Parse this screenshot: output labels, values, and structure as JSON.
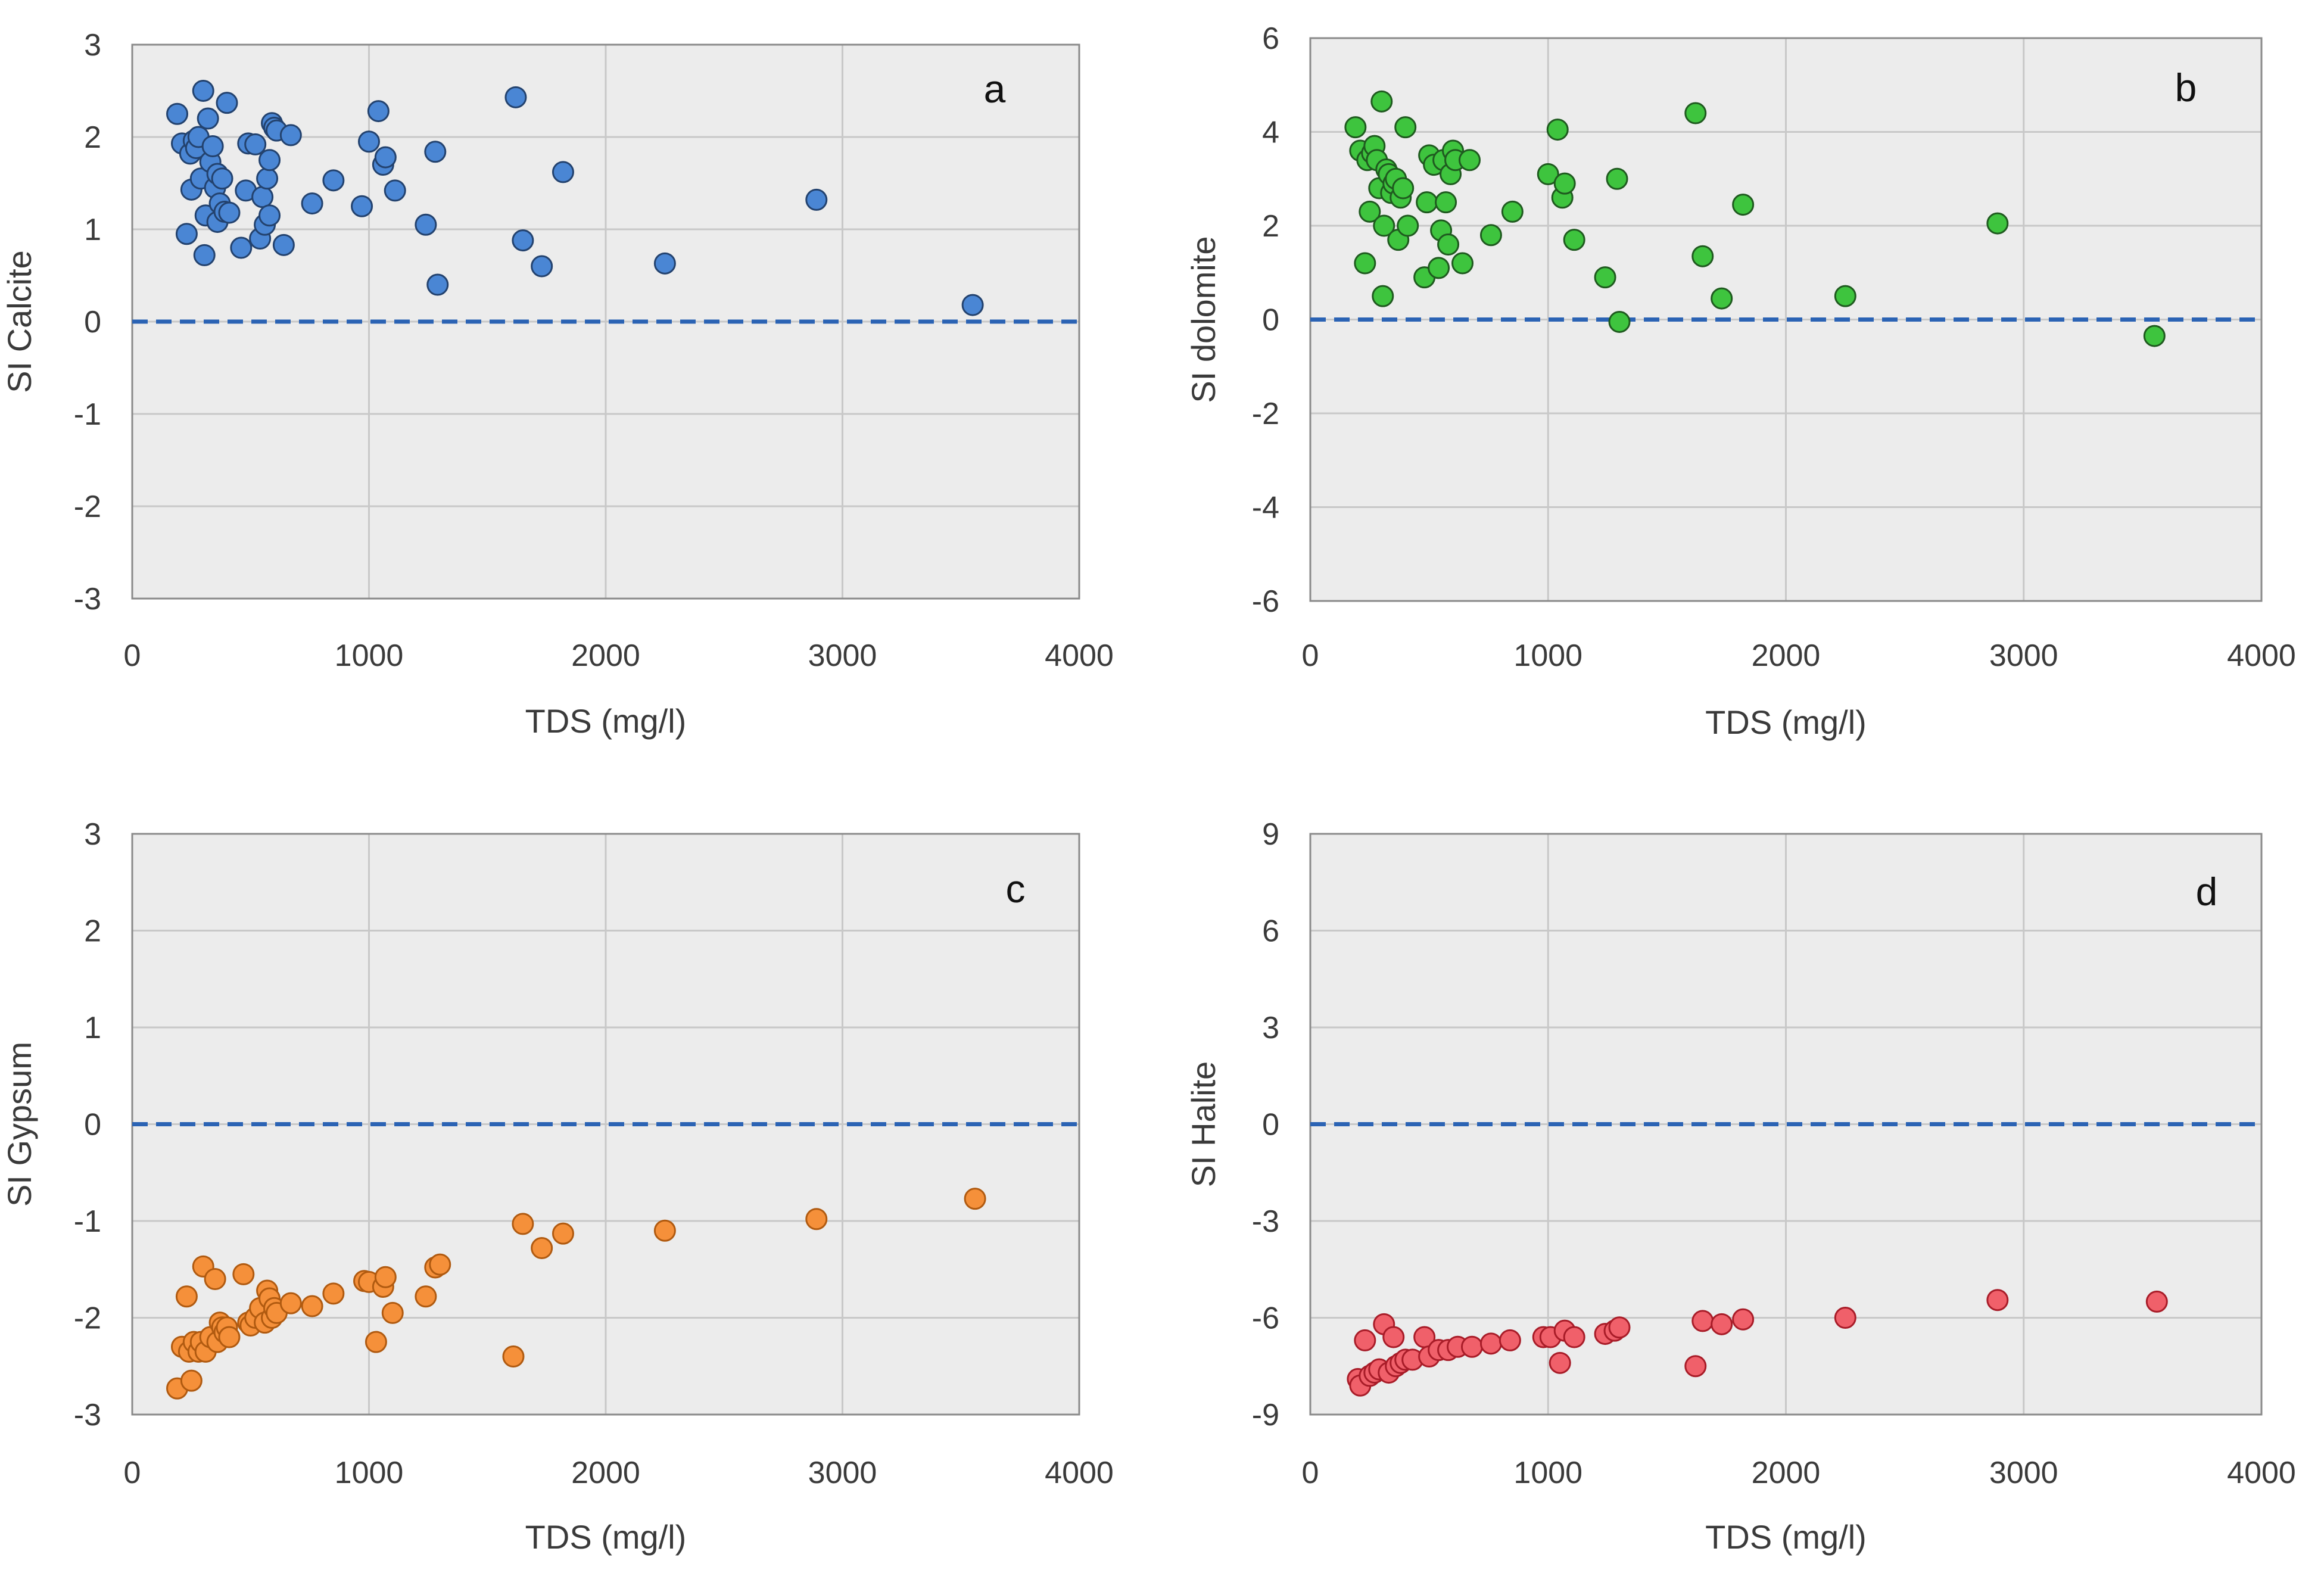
{
  "chart_data": [
    {
      "type": "scatter",
      "panel_label": "a",
      "xlabel": "TDS (mg/l)",
      "ylabel": "SI Calcite",
      "xlim": [
        0,
        4000
      ],
      "ylim": [
        -3,
        3
      ],
      "xticks": [
        "0",
        "1000",
        "2000",
        "3000",
        "4000"
      ],
      "yticks": [
        "3",
        "2",
        "1",
        "0",
        "-1",
        "-2",
        "-3"
      ],
      "reference_line": 0,
      "fill": "#4a86d4",
      "stroke": "#23426e",
      "x": [
        190,
        210,
        230,
        245,
        250,
        260,
        270,
        280,
        290,
        300,
        305,
        310,
        320,
        330,
        340,
        350,
        360,
        360,
        370,
        380,
        390,
        400,
        410,
        460,
        480,
        490,
        520,
        540,
        550,
        560,
        570,
        580,
        580,
        590,
        600,
        610,
        640,
        670,
        760,
        850,
        970,
        1000,
        1040,
        1060,
        1070,
        1110,
        1240,
        1280,
        1290,
        1620,
        1650,
        1730,
        1820,
        2250,
        2890,
        3550
      ],
      "y": [
        2.25,
        1.93,
        0.95,
        1.82,
        1.43,
        1.96,
        1.88,
        2.0,
        1.55,
        2.5,
        0.72,
        1.15,
        2.2,
        1.73,
        1.9,
        1.45,
        1.08,
        1.6,
        1.28,
        1.55,
        1.19,
        2.37,
        1.18,
        0.8,
        1.42,
        1.93,
        1.92,
        0.9,
        1.35,
        1.05,
        1.55,
        1.75,
        1.15,
        2.15,
        2.1,
        2.07,
        0.83,
        2.02,
        1.28,
        1.53,
        1.25,
        1.95,
        2.28,
        1.7,
        1.78,
        1.42,
        1.05,
        1.84,
        0.4,
        2.43,
        0.88,
        0.6,
        1.62,
        0.63,
        1.32,
        0.18
      ]
    },
    {
      "type": "scatter",
      "panel_label": "b",
      "xlabel": "TDS (mg/l)",
      "ylabel": "SI dolomite",
      "xlim": [
        0,
        4000
      ],
      "ylim": [
        -6,
        6
      ],
      "xticks": [
        "0",
        "1000",
        "2000",
        "3000",
        "4000"
      ],
      "yticks": [
        "6",
        "4",
        "2",
        "0",
        "-2",
        "-4",
        "-6"
      ],
      "reference_line": 0,
      "fill": "#3ec43e",
      "stroke": "#1f5a1f",
      "x": [
        190,
        210,
        230,
        240,
        250,
        260,
        270,
        280,
        290,
        300,
        305,
        310,
        320,
        330,
        340,
        350,
        360,
        370,
        380,
        390,
        400,
        410,
        480,
        490,
        500,
        520,
        540,
        550,
        560,
        570,
        580,
        590,
        600,
        610,
        640,
        670,
        760,
        850,
        1000,
        1040,
        1060,
        1070,
        1110,
        1240,
        1290,
        1300,
        1620,
        1650,
        1730,
        1820,
        2250,
        2890,
        3550
      ],
      "y": [
        4.1,
        3.6,
        1.2,
        3.4,
        2.3,
        3.55,
        3.7,
        3.4,
        2.8,
        4.65,
        0.5,
        2.0,
        3.2,
        3.1,
        2.7,
        2.9,
        3.0,
        1.7,
        2.6,
        2.8,
        4.1,
        2.0,
        0.9,
        2.5,
        3.5,
        3.3,
        1.1,
        1.9,
        3.4,
        2.5,
        1.6,
        3.1,
        3.6,
        3.4,
        1.2,
        3.4,
        1.8,
        2.3,
        3.1,
        4.05,
        2.6,
        2.9,
        1.7,
        0.9,
        3.0,
        -0.05,
        4.4,
        1.35,
        0.45,
        2.45,
        0.5,
        2.05,
        -0.35
      ]
    },
    {
      "type": "scatter",
      "panel_label": "c",
      "xlabel": "TDS (mg/l)",
      "ylabel": "SI Gypsum",
      "xlim": [
        0,
        4000
      ],
      "ylim": [
        -3,
        3
      ],
      "xticks": [
        "0",
        "1000",
        "2000",
        "3000",
        "4000"
      ],
      "yticks": [
        "3",
        "2",
        "1",
        "0",
        "-1",
        "-2",
        "-3"
      ],
      "reference_line": 0,
      "fill": "#f5903a",
      "stroke": "#b05a10",
      "x": [
        190,
        210,
        230,
        240,
        250,
        260,
        280,
        290,
        300,
        310,
        330,
        350,
        360,
        370,
        380,
        390,
        400,
        410,
        470,
        490,
        500,
        520,
        540,
        560,
        570,
        580,
        590,
        600,
        610,
        670,
        760,
        850,
        980,
        1000,
        1030,
        1060,
        1070,
        1100,
        1240,
        1280,
        1300,
        1610,
        1650,
        1730,
        1820,
        2250,
        2890,
        3560
      ],
      "y": [
        -2.73,
        -2.3,
        -1.78,
        -2.35,
        -2.65,
        -2.25,
        -2.35,
        -2.25,
        -1.47,
        -2.35,
        -2.2,
        -1.6,
        -2.25,
        -2.05,
        -2.1,
        -2.15,
        -2.1,
        -2.2,
        -1.55,
        -2.05,
        -2.08,
        -2.0,
        -1.9,
        -2.05,
        -1.72,
        -1.8,
        -2.0,
        -1.9,
        -1.95,
        -1.85,
        -1.88,
        -1.75,
        -1.62,
        -1.63,
        -2.25,
        -1.68,
        -1.58,
        -1.95,
        -1.78,
        -1.48,
        -1.45,
        -2.4,
        -1.03,
        -1.28,
        -1.13,
        -1.1,
        -0.98,
        -0.77
      ]
    },
    {
      "type": "scatter",
      "panel_label": "d",
      "xlabel": "TDS (mg/l)",
      "ylabel": "SI Halite",
      "xlim": [
        0,
        4000
      ],
      "ylim": [
        -9,
        9
      ],
      "xticks": [
        "0",
        "1000",
        "2000",
        "3000",
        "4000"
      ],
      "yticks": [
        "9",
        "6",
        "3",
        "0",
        "-3",
        "-6",
        "-9"
      ],
      "reference_line": 0,
      "fill": "#f0606a",
      "stroke": "#a81c28",
      "x": [
        200,
        210,
        230,
        250,
        270,
        290,
        310,
        330,
        350,
        360,
        380,
        400,
        430,
        480,
        500,
        540,
        580,
        620,
        680,
        760,
        840,
        980,
        1010,
        1050,
        1070,
        1110,
        1240,
        1280,
        1300,
        1620,
        1650,
        1730,
        1820,
        2250,
        2890,
        3560
      ],
      "y": [
        -7.9,
        -8.1,
        -6.7,
        -7.8,
        -7.7,
        -7.6,
        -6.2,
        -7.7,
        -6.6,
        -7.5,
        -7.4,
        -7.3,
        -7.3,
        -6.6,
        -7.2,
        -7.0,
        -7.0,
        -6.9,
        -6.9,
        -6.8,
        -6.7,
        -6.6,
        -6.6,
        -7.4,
        -6.4,
        -6.6,
        -6.5,
        -6.4,
        -6.3,
        -7.5,
        -6.1,
        -6.2,
        -6.05,
        -6.0,
        -5.45,
        -5.5
      ]
    }
  ]
}
